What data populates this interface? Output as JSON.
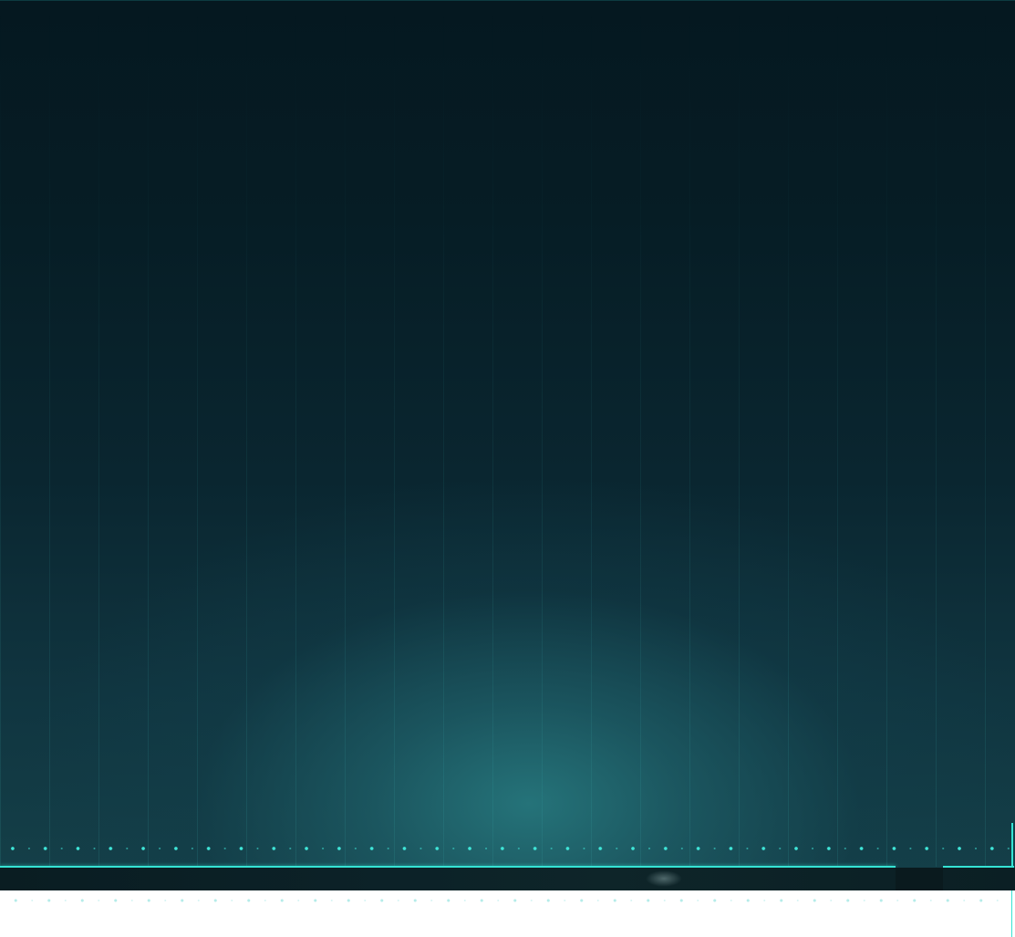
{
  "theme": {
    "background_top": "#051820",
    "background_glow": "#26767c",
    "accent": "#35e3d4",
    "band": "#0c2228",
    "footer": "#ffffff"
  },
  "decorations": {
    "stripes": "vertical-gridlines",
    "dot_row": "cyan-dot-row",
    "progress_line": "cyan-progress-line",
    "progress_fraction": 0.88
  }
}
